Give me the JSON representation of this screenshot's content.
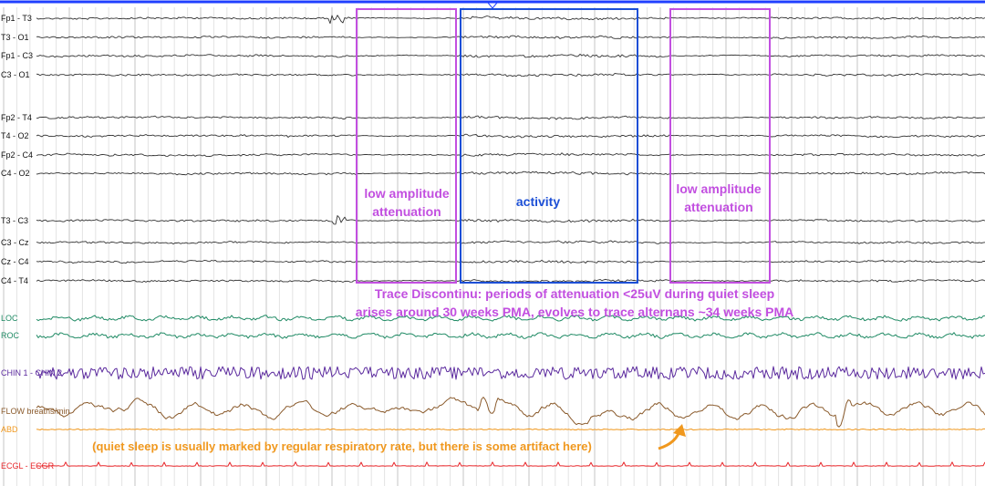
{
  "chart_data": {
    "type": "line",
    "channels": [
      {
        "label": "Fp1 - T3",
        "group": "eeg",
        "color": "#333333"
      },
      {
        "label": "T3 - O1",
        "group": "eeg",
        "color": "#333333"
      },
      {
        "label": "Fp1 - C3",
        "group": "eeg",
        "color": "#333333"
      },
      {
        "label": "C3 - O1",
        "group": "eeg",
        "color": "#333333"
      },
      {
        "label": "Fp2 - T4",
        "group": "eeg",
        "color": "#333333"
      },
      {
        "label": "T4 - O2",
        "group": "eeg",
        "color": "#333333"
      },
      {
        "label": "Fp2 - C4",
        "group": "eeg",
        "color": "#333333"
      },
      {
        "label": "C4 - O2",
        "group": "eeg",
        "color": "#333333"
      },
      {
        "label": "T3 - C3",
        "group": "eeg",
        "color": "#333333"
      },
      {
        "label": "C3 - Cz",
        "group": "eeg",
        "color": "#333333"
      },
      {
        "label": "Cz - C4",
        "group": "eeg",
        "color": "#333333"
      },
      {
        "label": "C4 - T4",
        "group": "eeg",
        "color": "#333333"
      },
      {
        "label": "LOC",
        "group": "eog",
        "color": "#1f8a64"
      },
      {
        "label": "ROC",
        "group": "eog",
        "color": "#1f8a64"
      },
      {
        "label": "CHIN 1 - CHIN 2",
        "group": "emg",
        "color": "#5b2a9e"
      },
      {
        "label": "FLOW breaths/min",
        "group": "flow",
        "color": "#8a5a2b"
      },
      {
        "label": "ABD",
        "group": "abd",
        "color": "#f0981e"
      },
      {
        "label": "ECGL - ECGR",
        "group": "ecg",
        "color": "#e8262a"
      }
    ],
    "regions": [
      {
        "label": "low amplitude\nattenuation",
        "color": "#c24fe0"
      },
      {
        "label": "activity",
        "color": "#1c4fd6"
      },
      {
        "label": "low amplitude\nattenuation",
        "color": "#c24fe0"
      }
    ]
  },
  "annotations": {
    "region_1": [
      "low amplitude",
      "attenuation"
    ],
    "region_2": "activity",
    "region_3": [
      "low amplitude",
      "attenuation"
    ],
    "caption_line_1": "Trace Discontinu: periods of attenuation <25uV during quiet sleep",
    "caption_line_2": "arises around 30 weeks PMA, evolves to trace alternans ~34 weeks PMA",
    "note": "(quiet sleep is usually marked by regular respiratory rate, but there is some artifact here)"
  },
  "colors": {
    "eeg": "#333333",
    "eog": "#1f8a64",
    "emg": "#5b2a9e",
    "flow": "#8a5a2b",
    "abd": "#f0981e",
    "ecg": "#e8262a",
    "annotation_violet": "#c24fe0",
    "annotation_blue": "#1c4fd6",
    "annotation_orange": "#f0981e",
    "top_marker": "#1f3fff"
  }
}
